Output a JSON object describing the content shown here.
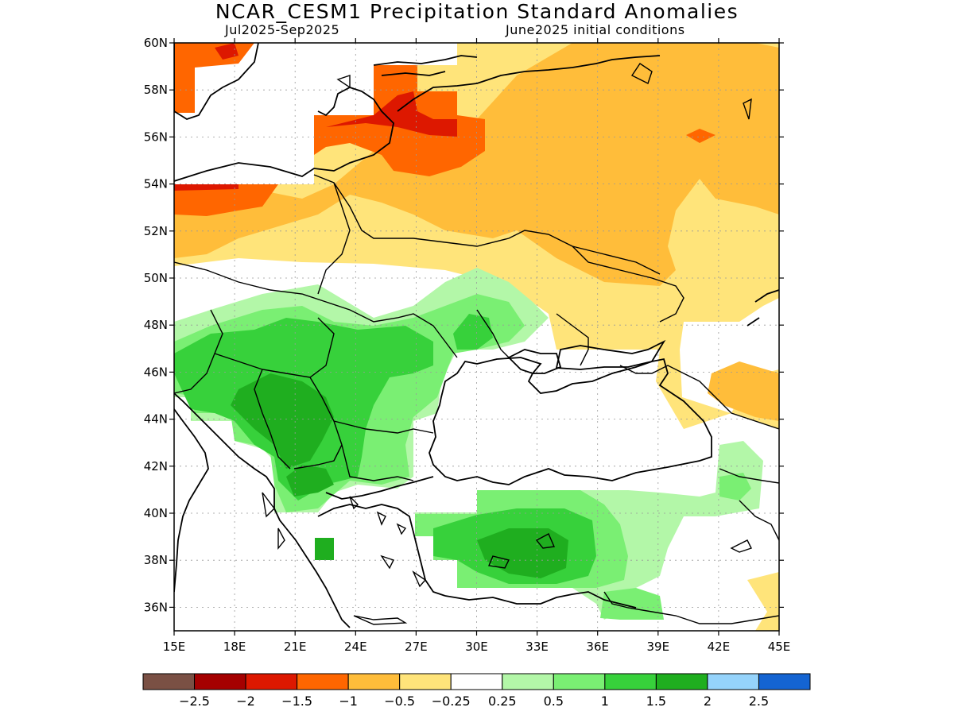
{
  "title": "NCAR_CESM1 Precipitation Standard Anomalies",
  "subtitle_left": "Jul2025-Sep2025",
  "subtitle_right": "June2025 initial conditions",
  "map": {
    "lon_range": [
      15,
      45
    ],
    "lat_range": [
      35,
      60
    ],
    "lat_ticks": [
      {
        "value": 60,
        "label": "60N"
      },
      {
        "value": 58,
        "label": "58N"
      },
      {
        "value": 56,
        "label": "56N"
      },
      {
        "value": 54,
        "label": "54N"
      },
      {
        "value": 52,
        "label": "52N"
      },
      {
        "value": 50,
        "label": "50N"
      },
      {
        "value": 48,
        "label": "48N"
      },
      {
        "value": 46,
        "label": "46N"
      },
      {
        "value": 44,
        "label": "44N"
      },
      {
        "value": 42,
        "label": "42N"
      },
      {
        "value": 40,
        "label": "40N"
      },
      {
        "value": 38,
        "label": "38N"
      },
      {
        "value": 36,
        "label": "36N"
      }
    ],
    "lon_ticks": [
      {
        "value": 15,
        "label": "15E"
      },
      {
        "value": 18,
        "label": "18E"
      },
      {
        "value": 21,
        "label": "21E"
      },
      {
        "value": 24,
        "label": "24E"
      },
      {
        "value": 27,
        "label": "27E"
      },
      {
        "value": 30,
        "label": "30E"
      },
      {
        "value": 33,
        "label": "33E"
      },
      {
        "value": 36,
        "label": "36E"
      },
      {
        "value": 39,
        "label": "39E"
      },
      {
        "value": 42,
        "label": "42E"
      },
      {
        "value": 45,
        "label": "45E"
      }
    ],
    "gridlines": true
  },
  "colorbar": {
    "colors": [
      "#7a5044",
      "#a50000",
      "#dd1800",
      "#ff6600",
      "#ffbd3a",
      "#ffe47a",
      "#ffffff",
      "#b3f7a8",
      "#7aef73",
      "#37d13b",
      "#1fae1f",
      "#95d3fb",
      "#1464d2"
    ],
    "labels": [
      "-2.5",
      "-2",
      "-1.5",
      "-1",
      "-0.5",
      "-0.25",
      "0.25",
      "0.5",
      "1",
      "1.5",
      "2",
      "2.5"
    ]
  }
}
